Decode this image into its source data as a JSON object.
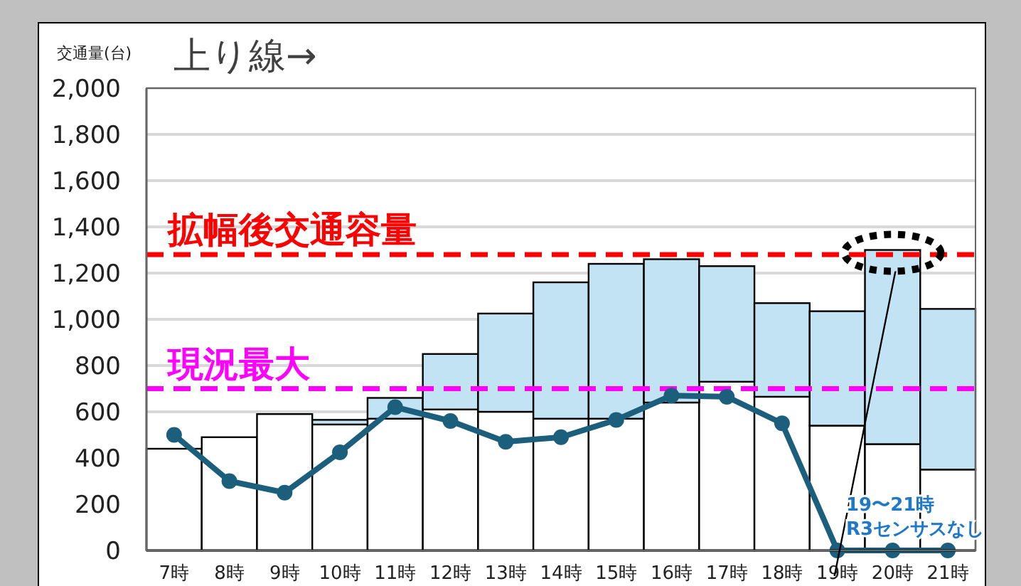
{
  "chart_data": {
    "type": "bar",
    "stacked": true,
    "title": "上り線→",
    "ylabel": "交通量(台)",
    "categories": [
      "7時",
      "8時",
      "9時",
      "10時",
      "11時",
      "12時",
      "13時",
      "14時",
      "15時",
      "16時",
      "17時",
      "18時",
      "19時",
      "20時",
      "21時"
    ],
    "series": [
      {
        "color": "#ffffff",
        "values": [
          440,
          490,
          590,
          545,
          570,
          610,
          600,
          570,
          570,
          640,
          730,
          665,
          540,
          460,
          350
        ]
      },
      {
        "color": "#c2e3f3",
        "values": [
          0,
          0,
          0,
          20,
          90,
          240,
          425,
          590,
          670,
          620,
          500,
          405,
          495,
          840,
          695
        ]
      },
      {
        "type": "line",
        "color": "#1b5f7c",
        "marker": "circle",
        "values": [
          500,
          300,
          250,
          425,
          620,
          560,
          470,
          490,
          565,
          670,
          665,
          550,
          0,
          0,
          0
        ]
      }
    ],
    "ylim": [
      0,
      2000
    ],
    "yticks": [
      0,
      200,
      400,
      600,
      800,
      {
        "value": 1000,
        "label": "1,000"
      },
      {
        "value": 1200,
        "label": "1,200"
      },
      {
        "value": 1400,
        "label": "1,400"
      },
      {
        "value": 1600,
        "label": "1,600"
      },
      {
        "value": 1800,
        "label": "1,800"
      },
      {
        "value": 2000,
        "label": "2,000"
      }
    ],
    "grid": "y",
    "ref_lines": [
      {
        "axis": "y",
        "value": 1280,
        "label": "拡幅後交通容量",
        "color": "#ff0000",
        "line_style": "dashed"
      },
      {
        "axis": "y",
        "value": 700,
        "label": "現況最大",
        "color": "#ff00ff",
        "line_style": "dashed"
      }
    ],
    "annotations": [
      "19〜21時\nR3センサスなし"
    ]
  }
}
